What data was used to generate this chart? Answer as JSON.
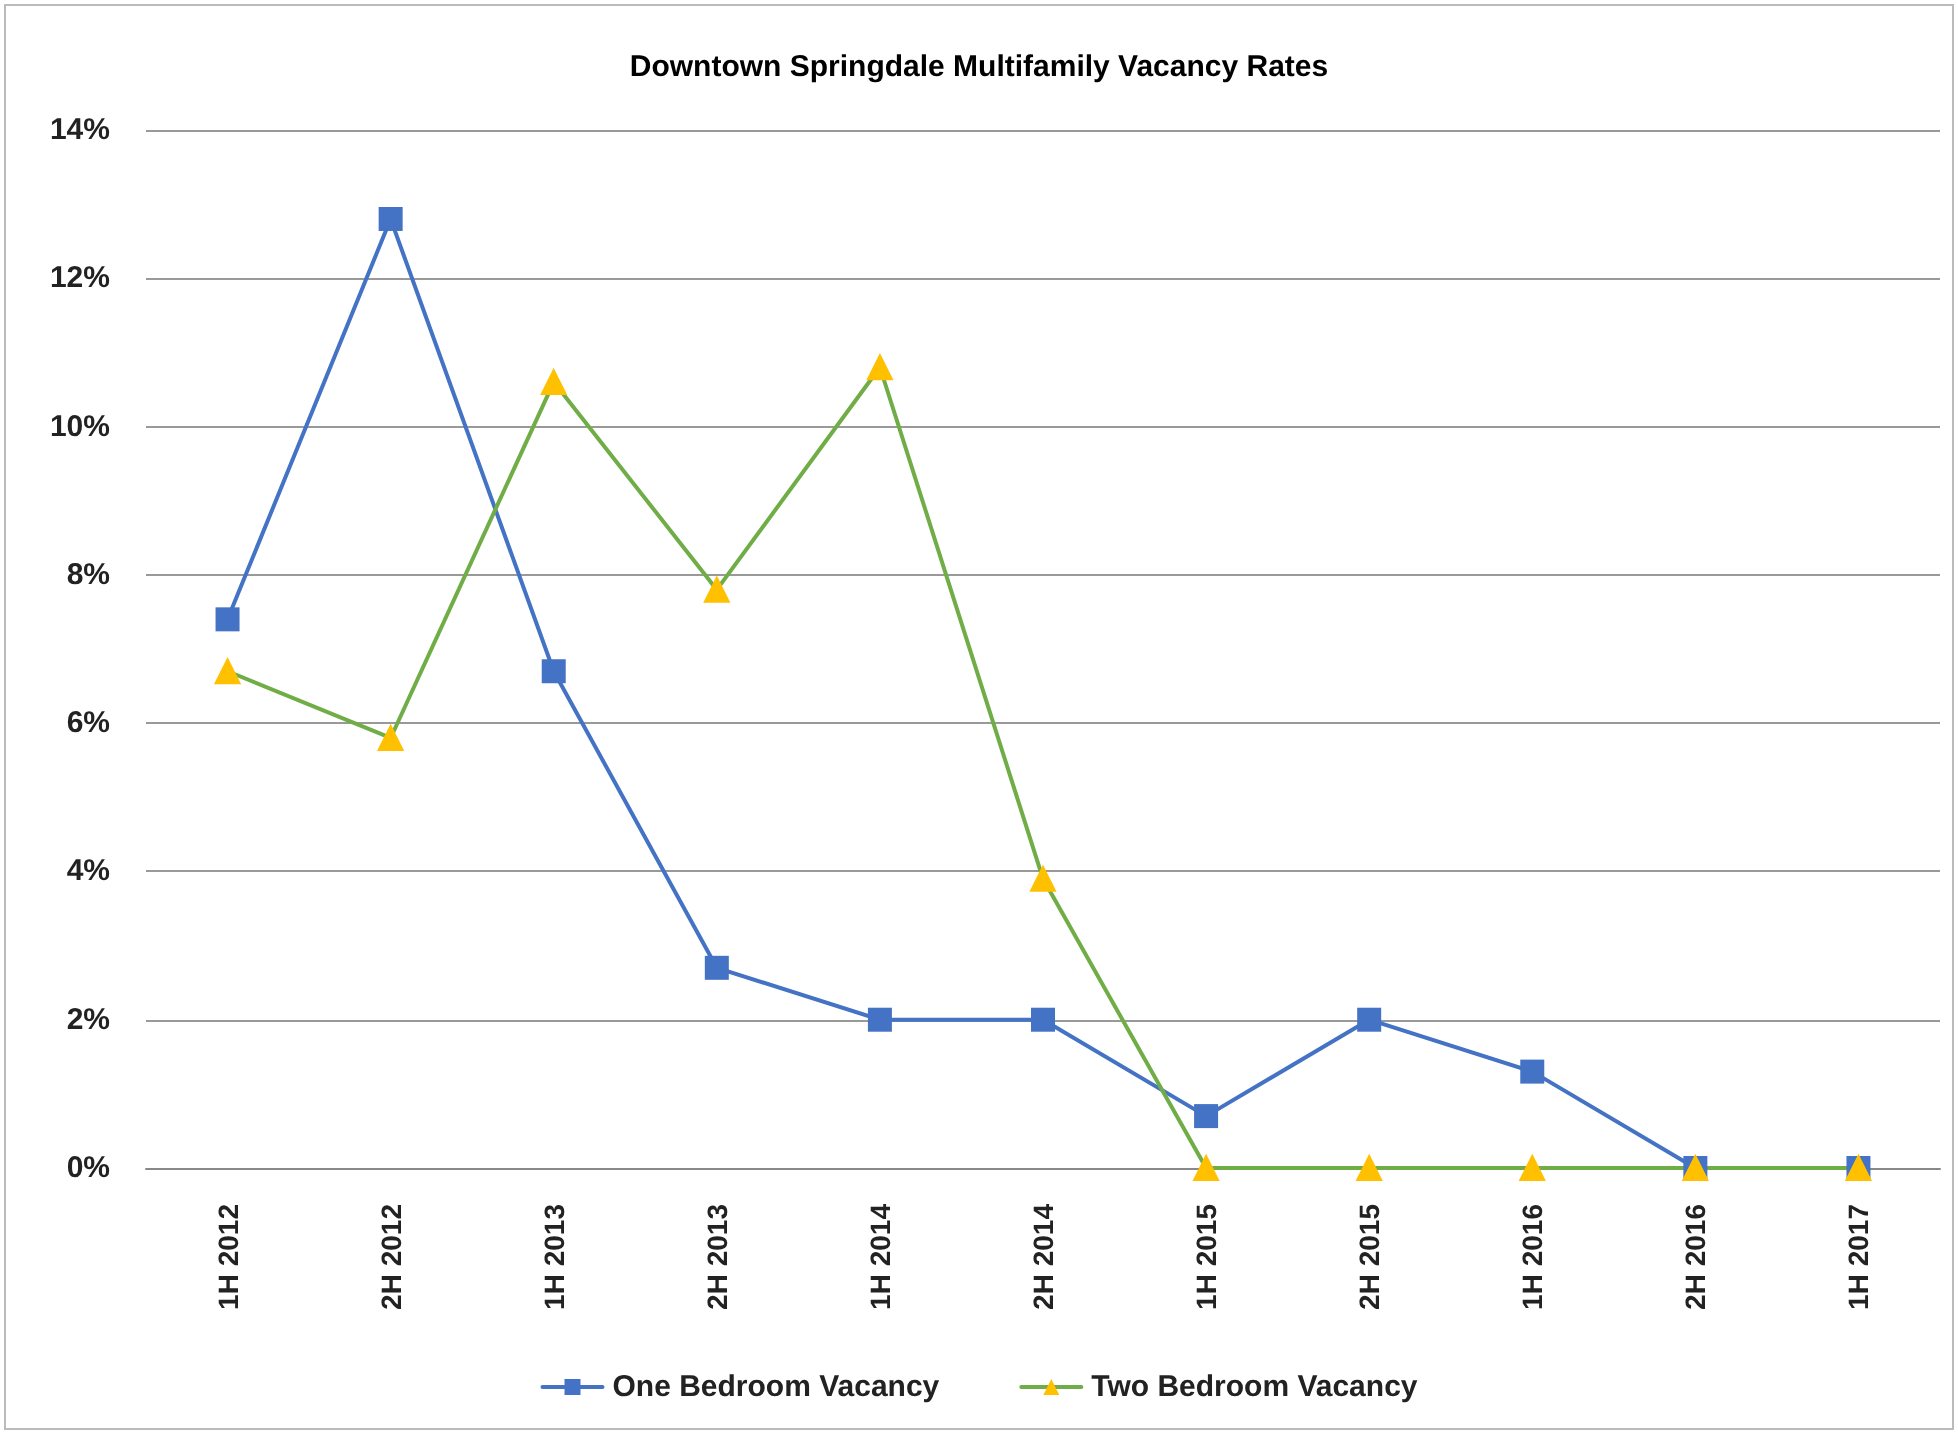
{
  "chart_data": {
    "type": "line",
    "title": "Downtown Springdale Multifamily Vacancy Rates",
    "categories": [
      "1H 2012",
      "2H 2012",
      "1H 2013",
      "2H 2013",
      "1H 2014",
      "2H 2014",
      "1H 2015",
      "2H 2015",
      "1H 2016",
      "2H 2016",
      "1H 2017"
    ],
    "series": [
      {
        "name": "One Bedroom Vacancy",
        "color": "#4472c4",
        "marker": "square",
        "values": [
          7.4,
          12.8,
          6.7,
          2.7,
          2.0,
          2.0,
          0.7,
          2.0,
          1.3,
          0,
          0
        ]
      },
      {
        "name": "Two Bedroom Vacancy",
        "color": "#70ad47",
        "colors": [
          "#ffc000",
          "#ffc000",
          "#ffc000",
          "#ffc000",
          "#ffc000",
          "#ffc000",
          "#ffc000",
          "#ffc000",
          "#ffc000",
          "#ffc000",
          "#ffc000"
        ],
        "marker": "triangle",
        "values": [
          6.7,
          5.8,
          10.6,
          7.8,
          10.8,
          3.9,
          0,
          0,
          0,
          0,
          0
        ]
      }
    ],
    "ylim": [
      0,
      14
    ],
    "yticks": [
      {
        "value": 0,
        "label": "0%"
      },
      {
        "value": 2,
        "label": "2%"
      },
      {
        "value": 4,
        "label": "4%"
      },
      {
        "value": 6,
        "label": "6%"
      },
      {
        "value": 8,
        "label": "8%"
      },
      {
        "value": 10,
        "label": "10%"
      },
      {
        "value": 12,
        "label": "12%"
      },
      {
        "value": 14,
        "label": "14%"
      }
    ],
    "grid": "y",
    "legend": "bottom",
    "line_style": "solid"
  }
}
